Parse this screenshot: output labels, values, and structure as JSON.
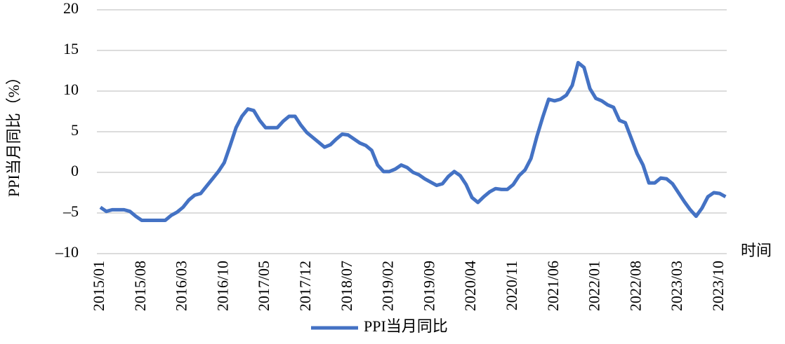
{
  "chart_data": {
    "type": "line",
    "y_label": "PPI当月同比（%）",
    "x_label": "时间",
    "categories": [
      "2015/01",
      null,
      null,
      null,
      null,
      null,
      null,
      "2015/08",
      null,
      null,
      null,
      null,
      null,
      null,
      "2016/03",
      null,
      null,
      null,
      null,
      null,
      null,
      "2016/10",
      null,
      null,
      null,
      null,
      null,
      null,
      "2017/05",
      null,
      null,
      null,
      null,
      null,
      null,
      "2017/12",
      null,
      null,
      null,
      null,
      null,
      null,
      "2018/07",
      null,
      null,
      null,
      null,
      null,
      null,
      "2019/02",
      null,
      null,
      null,
      null,
      null,
      null,
      "2019/09",
      null,
      null,
      null,
      null,
      null,
      null,
      "2020/04",
      null,
      null,
      null,
      null,
      null,
      null,
      "2020/11",
      null,
      null,
      null,
      null,
      null,
      null,
      "2021/06",
      null,
      null,
      null,
      null,
      null,
      null,
      "2022/01",
      null,
      null,
      null,
      null,
      null,
      null,
      "2022/08",
      null,
      null,
      null,
      null,
      null,
      null,
      "2023/03",
      null,
      null,
      null,
      null,
      null,
      null,
      "2023/10",
      null
    ],
    "series": [
      {
        "name": "PPI当月同比",
        "color": "#4472c4",
        "values": [
          -4.3,
          -4.8,
          -4.6,
          -4.6,
          -4.6,
          -4.8,
          -5.4,
          -5.9,
          -5.9,
          -5.9,
          -5.9,
          -5.9,
          -5.3,
          -4.9,
          -4.3,
          -3.4,
          -2.8,
          -2.6,
          -1.7,
          -0.8,
          0.1,
          1.2,
          3.3,
          5.5,
          6.9,
          7.8,
          7.6,
          6.4,
          5.5,
          5.5,
          5.5,
          6.3,
          6.9,
          6.9,
          5.8,
          4.9,
          4.3,
          3.7,
          3.1,
          3.4,
          4.1,
          4.7,
          4.6,
          4.1,
          3.6,
          3.3,
          2.7,
          0.9,
          0.1,
          0.1,
          0.4,
          0.9,
          0.6,
          0.0,
          -0.3,
          -0.8,
          -1.2,
          -1.6,
          -1.4,
          -0.5,
          0.1,
          -0.4,
          -1.5,
          -3.1,
          -3.7,
          -3.0,
          -2.4,
          -2.0,
          -2.1,
          -2.1,
          -1.5,
          -0.4,
          0.3,
          1.7,
          4.4,
          6.8,
          9.0,
          8.8,
          9.0,
          9.5,
          10.7,
          13.5,
          12.9,
          10.3,
          9.1,
          8.8,
          8.3,
          8.0,
          6.4,
          6.1,
          4.2,
          2.3,
          0.9,
          -1.3,
          -1.3,
          -0.7,
          -0.8,
          -1.4,
          -2.5,
          -3.6,
          -4.6,
          -5.4,
          -4.4,
          -3.0,
          -2.5,
          -2.6,
          -3.0
        ]
      }
    ],
    "ylim": [
      -10,
      20
    ],
    "yticks": [
      {
        "value": -10,
        "label": "–10"
      },
      {
        "value": -5,
        "label": "–5"
      },
      0,
      5,
      10,
      15,
      20
    ],
    "grid": true,
    "legend": "bottom"
  }
}
